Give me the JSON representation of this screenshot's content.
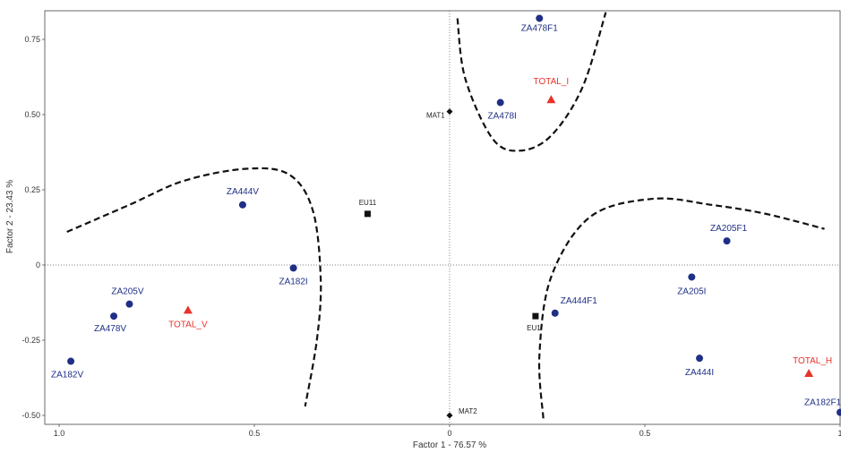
{
  "chart_data": {
    "type": "scatter",
    "title": "",
    "xlabel": "Factor 1  -  76.57 %",
    "ylabel": "Factor 2  -  23.43 %",
    "xlim": [
      1.0,
      -1.0
    ],
    "ylim": [
      -0.52,
      0.84
    ],
    "x_ticks": [
      {
        "value": 1.0,
        "label": "1.0"
      },
      {
        "value": 0.5,
        "label": "0.5"
      },
      {
        "value": 0.0,
        "label": "0"
      },
      {
        "value": -0.5,
        "label": "0.5"
      },
      {
        "value": -1.0,
        "label": "1"
      }
    ],
    "y_ticks": [
      {
        "value": 0.75,
        "label": "0.75"
      },
      {
        "value": 0.5,
        "label": "0.50"
      },
      {
        "value": 0.25,
        "label": "0.25"
      },
      {
        "value": 0.0,
        "label": "0"
      },
      {
        "value": -0.25,
        "label": "-0.25"
      },
      {
        "value": -0.5,
        "label": "-0.50"
      }
    ],
    "reference_lines": {
      "x": 0,
      "y": 0,
      "style": "dotted"
    },
    "series": [
      {
        "marker": "circle",
        "color": "#1f2f86",
        "points": [
          {
            "label": "ZA478F1",
            "x": -0.23,
            "y": 0.82
          },
          {
            "label": "ZA478I",
            "x": -0.13,
            "y": 0.54
          },
          {
            "label": "ZA444V",
            "x": 0.53,
            "y": 0.2
          },
          {
            "label": "ZA182I",
            "x": 0.4,
            "y": -0.01
          },
          {
            "label": "ZA205V",
            "x": 0.82,
            "y": -0.13
          },
          {
            "label": "ZA478V",
            "x": 0.86,
            "y": -0.17
          },
          {
            "label": "ZA182V",
            "x": 0.97,
            "y": -0.32
          },
          {
            "label": "ZA444F1",
            "x": -0.27,
            "y": -0.16
          },
          {
            "label": "ZA205F1",
            "x": -0.71,
            "y": 0.08
          },
          {
            "label": "ZA205I",
            "x": -0.62,
            "y": -0.04
          },
          {
            "label": "ZA444I",
            "x": -0.64,
            "y": -0.31
          },
          {
            "label": "ZA182F1",
            "x": -1.0,
            "y": -0.49
          }
        ]
      },
      {
        "marker": "triangle",
        "color": "#e8332a",
        "points": [
          {
            "label": "TOTAL_I",
            "x": -0.26,
            "y": 0.55
          },
          {
            "label": "TOTAL_V",
            "x": 0.67,
            "y": -0.15
          },
          {
            "label": "TOTAL_H",
            "x": -0.92,
            "y": -0.36
          }
        ]
      },
      {
        "marker": "square",
        "color": "#111111",
        "points": [
          {
            "label": "EU11",
            "x": 0.21,
            "y": 0.17
          },
          {
            "label": "EU1",
            "x": -0.22,
            "y": -0.17
          }
        ]
      },
      {
        "marker": "diamond",
        "color": "#111111",
        "points": [
          {
            "label": "MAT1",
            "x": 0.0,
            "y": 0.51
          },
          {
            "label": "MAT2",
            "x": 0.0,
            "y": -0.5
          }
        ]
      }
    ],
    "cluster_curves": [
      {
        "points": [
          [
            0.98,
            0.11
          ],
          [
            0.82,
            0.2
          ],
          [
            0.68,
            0.28
          ],
          [
            0.52,
            0.32
          ],
          [
            0.41,
            0.3
          ],
          [
            0.35,
            0.18
          ],
          [
            0.33,
            -0.05
          ],
          [
            0.34,
            -0.25
          ],
          [
            0.37,
            -0.47
          ]
        ]
      },
      {
        "points": [
          [
            -0.02,
            0.82
          ],
          [
            -0.04,
            0.62
          ],
          [
            -0.11,
            0.42
          ],
          [
            -0.18,
            0.38
          ],
          [
            -0.26,
            0.43
          ],
          [
            -0.34,
            0.59
          ],
          [
            -0.4,
            0.84
          ]
        ]
      },
      {
        "points": [
          [
            -0.24,
            -0.51
          ],
          [
            -0.23,
            -0.3
          ],
          [
            -0.26,
            -0.04
          ],
          [
            -0.36,
            0.16
          ],
          [
            -0.52,
            0.22
          ],
          [
            -0.67,
            0.2
          ],
          [
            -0.81,
            0.17
          ],
          [
            -0.96,
            0.12
          ]
        ]
      }
    ]
  }
}
